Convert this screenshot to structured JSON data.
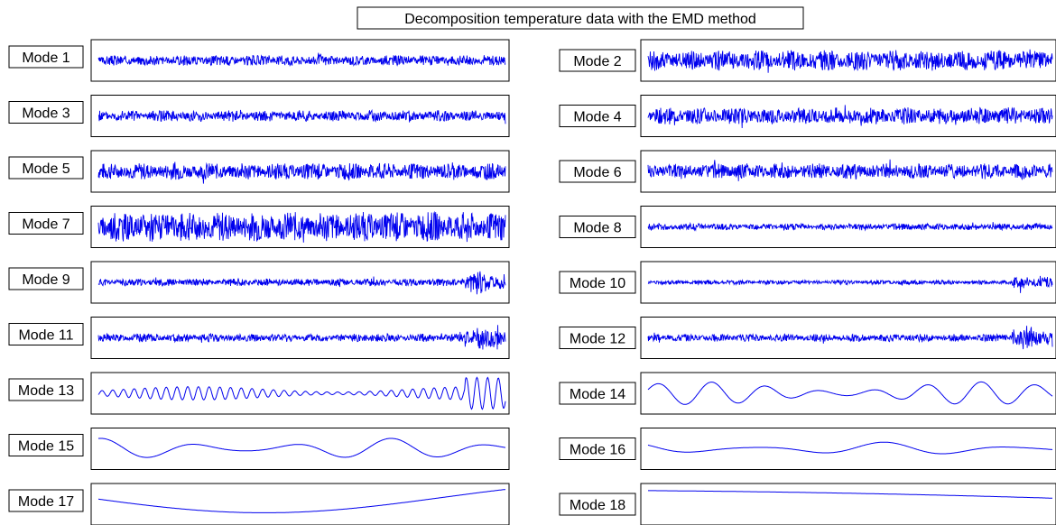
{
  "title": "Decomposition temperature data with the EMD method",
  "line_color": "#0000ee",
  "chart_data": {
    "type": "line",
    "title": "Decomposition temperature data with the EMD method",
    "xlabel": "",
    "ylabel": "",
    "grid": false,
    "legend": "none",
    "panels": [
      {
        "label": "Mode 1",
        "kind": "noise",
        "amplitude": 0.28
      },
      {
        "label": "Mode 2",
        "kind": "noise",
        "amplitude": 0.55
      },
      {
        "label": "Mode 3",
        "kind": "noise",
        "amplitude": 0.3
      },
      {
        "label": "Mode 4",
        "kind": "noise",
        "amplitude": 0.45
      },
      {
        "label": "Mode 5",
        "kind": "noise",
        "amplitude": 0.45
      },
      {
        "label": "Mode 6",
        "kind": "noise",
        "amplitude": 0.42
      },
      {
        "label": "Mode 7",
        "kind": "noise",
        "amplitude": 0.8
      },
      {
        "label": "Mode 8",
        "kind": "noise",
        "amplitude": 0.18
      },
      {
        "label": "Mode 9",
        "kind": "noise",
        "amplitude": 0.2
      },
      {
        "label": "Mode 10",
        "kind": "noise",
        "amplitude": 0.12
      },
      {
        "label": "Mode 11",
        "kind": "noise",
        "amplitude": 0.22
      },
      {
        "label": "Mode 12",
        "kind": "noise",
        "amplitude": 0.2
      },
      {
        "label": "Mode 13",
        "kind": "wave",
        "amplitude": 0.35,
        "cycles": 38
      },
      {
        "label": "Mode 14",
        "kind": "wave",
        "amplitude": 0.6,
        "cycles": 7.5
      },
      {
        "label": "Mode 15",
        "kind": "wave",
        "amplitude": 0.55,
        "cycles": 4.2
      },
      {
        "label": "Mode 16",
        "kind": "wave",
        "amplitude": 0.35,
        "cycles": 3.2
      },
      {
        "label": "Mode 17",
        "kind": "smooth",
        "amplitude": 0.8,
        "cycles": 0.9
      },
      {
        "label": "Mode 18",
        "kind": "trend",
        "amplitude": 0.8,
        "cycles": 0.35
      }
    ]
  }
}
